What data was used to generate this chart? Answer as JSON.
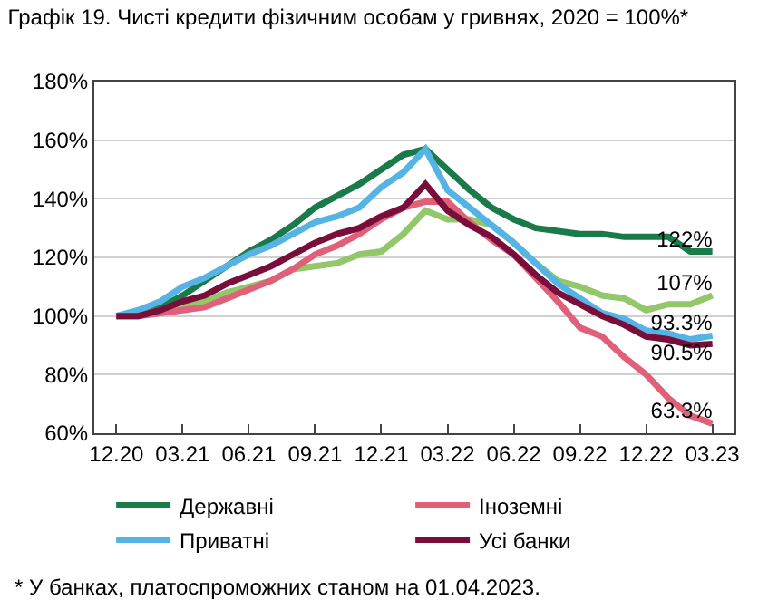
{
  "chart_data": {
    "type": "line",
    "title": "Графік 19. Чисті кредити фізичним особам у гривнях, 2020 = 100%*",
    "categories": [
      "12.20",
      null,
      null,
      "03.21",
      null,
      null,
      "06.21",
      null,
      null,
      "09.21",
      null,
      null,
      "12.21",
      null,
      null,
      "03.22",
      null,
      null,
      "06.22",
      null,
      null,
      "09.22",
      null,
      null,
      "12.22",
      null,
      null,
      "03.23"
    ],
    "series": [
      {
        "name": "Державні",
        "color": "#1a7a4a",
        "values": [
          100,
          101,
          103,
          107,
          112,
          117,
          122,
          126,
          131,
          137,
          141,
          145,
          150,
          155,
          157,
          150,
          143,
          137,
          133,
          130,
          129,
          128,
          128,
          127,
          127,
          127,
          122,
          122
        ],
        "value_labels": [
          null,
          null,
          null,
          null,
          null,
          null,
          null,
          null,
          null,
          null,
          null,
          null,
          null,
          null,
          null,
          null,
          null,
          null,
          null,
          null,
          null,
          null,
          null,
          null,
          null,
          null,
          null,
          "122%"
        ]
      },
      {
        "color": "#92c86a",
        "values": [
          100,
          100,
          102,
          104,
          105,
          108,
          110,
          112,
          116,
          117,
          118,
          121,
          122,
          128,
          136,
          133,
          133,
          131,
          125,
          118,
          112,
          110,
          107,
          106,
          102,
          104,
          104,
          107
        ],
        "value_labels": [
          null,
          null,
          null,
          null,
          null,
          null,
          null,
          null,
          null,
          null,
          null,
          null,
          null,
          null,
          null,
          null,
          null,
          null,
          null,
          null,
          null,
          null,
          null,
          null,
          null,
          null,
          null,
          "107%"
        ]
      },
      {
        "name": "Іноземні",
        "color": "#e0607a",
        "values": [
          100,
          100,
          101,
          102,
          103,
          106,
          109,
          112,
          116,
          121,
          124,
          128,
          133,
          137,
          139,
          139,
          132,
          126,
          121,
          113,
          105,
          96,
          93,
          86,
          80,
          72,
          66,
          63.3
        ],
        "value_labels": [
          null,
          null,
          null,
          null,
          null,
          null,
          null,
          null,
          null,
          null,
          null,
          null,
          null,
          null,
          null,
          null,
          null,
          null,
          null,
          null,
          null,
          null,
          null,
          null,
          null,
          null,
          null,
          "63.3%"
        ]
      },
      {
        "name": "Приватні",
        "color": "#55b4e4",
        "values": [
          100,
          102,
          105,
          110,
          113,
          117,
          121,
          124,
          128,
          132,
          134,
          137,
          144,
          149,
          157,
          143,
          137,
          131,
          125,
          118,
          111,
          106,
          101,
          99,
          95,
          94,
          92,
          93.3
        ],
        "value_labels": [
          null,
          null,
          null,
          null,
          null,
          null,
          null,
          null,
          null,
          null,
          null,
          null,
          null,
          null,
          null,
          null,
          null,
          null,
          null,
          null,
          null,
          null,
          null,
          null,
          null,
          null,
          null,
          "93.3%"
        ]
      },
      {
        "name": "Усі банки",
        "color": "#7a0e3a",
        "values": [
          100,
          100,
          102,
          105,
          107,
          111,
          114,
          117,
          121,
          125,
          128,
          130,
          134,
          137,
          145,
          136,
          131,
          127,
          121,
          114,
          108,
          104,
          100,
          97,
          93,
          92,
          90,
          90.5
        ],
        "value_labels": [
          null,
          null,
          null,
          null,
          null,
          null,
          null,
          null,
          null,
          null,
          null,
          null,
          null,
          null,
          null,
          null,
          null,
          null,
          null,
          null,
          null,
          null,
          null,
          null,
          null,
          null,
          null,
          "90.5%"
        ]
      }
    ],
    "ylim": [
      60,
      180
    ],
    "yticks": [
      {
        "value": 60,
        "label": "60%"
      },
      {
        "value": 80,
        "label": "80%"
      },
      {
        "value": 100,
        "label": "100%"
      },
      {
        "value": 120,
        "label": "120%"
      },
      {
        "value": 140,
        "label": "140%"
      },
      {
        "value": 160,
        "label": "160%"
      },
      {
        "value": 180,
        "label": "180%"
      }
    ],
    "grid": "y",
    "legend": "bottom",
    "marker": "none",
    "line_style": "solid",
    "annotations": [
      "* У банках, платоспроможних станом на 01.04.2023."
    ]
  }
}
